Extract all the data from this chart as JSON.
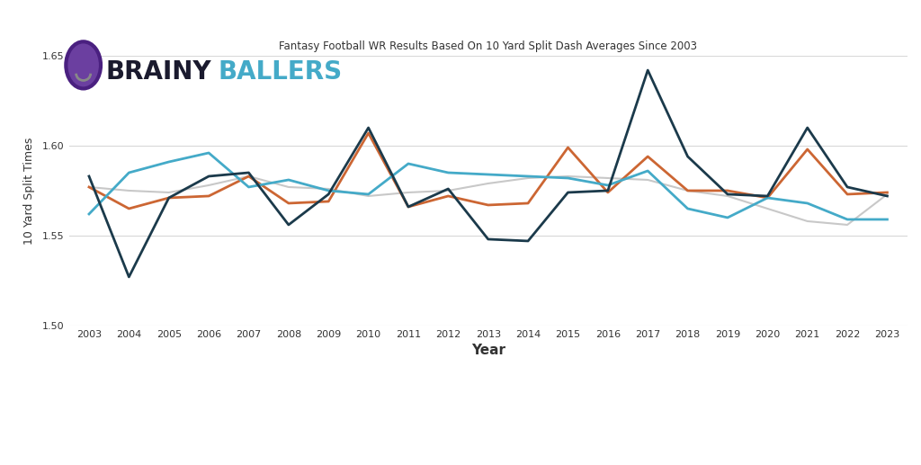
{
  "title": "Fantasy Football WR Results Based On 10 Yard Split Dash Averages Since 2003",
  "xlabel": "Year",
  "ylabel": "10 Yard Split Times",
  "years": [
    2003,
    2004,
    2005,
    2006,
    2007,
    2008,
    2009,
    2010,
    2011,
    2012,
    2013,
    2014,
    2015,
    2016,
    2017,
    2018,
    2019,
    2020,
    2021,
    2022,
    2023
  ],
  "top5": [
    1.583,
    1.527,
    1.571,
    1.583,
    1.585,
    1.556,
    1.573,
    1.61,
    1.566,
    1.576,
    1.548,
    1.547,
    1.574,
    1.575,
    1.642,
    1.594,
    1.573,
    1.572,
    1.61,
    1.577,
    1.572
  ],
  "top10": [
    1.577,
    1.565,
    1.571,
    1.572,
    1.583,
    1.568,
    1.569,
    1.607,
    1.566,
    1.572,
    1.567,
    1.568,
    1.599,
    1.574,
    1.594,
    1.575,
    1.575,
    1.571,
    1.598,
    1.573,
    1.574
  ],
  "top11_30": [
    1.577,
    1.575,
    1.574,
    1.578,
    1.583,
    1.577,
    1.576,
    1.572,
    1.574,
    1.575,
    1.579,
    1.582,
    1.583,
    1.582,
    1.581,
    1.575,
    1.572,
    1.565,
    1.558,
    1.556,
    1.573
  ],
  "top31_50": [
    1.562,
    1.585,
    1.591,
    1.596,
    1.577,
    1.581,
    1.575,
    1.573,
    1.59,
    1.585,
    1.584,
    1.583,
    1.582,
    1.578,
    1.586,
    1.565,
    1.56,
    1.571,
    1.568,
    1.559,
    1.559
  ],
  "colors": {
    "top5": "#1b3a4b",
    "top10": "#cc6633",
    "top11_30": "#c8c8c8",
    "top31_50": "#44aac8"
  },
  "ylim": [
    1.5,
    1.65
  ],
  "yticks": [
    1.5,
    1.55,
    1.6,
    1.65
  ],
  "bg_color": "#ffffff",
  "grid_color": "#d8d8d8",
  "brainy_color": "#1a1a2e",
  "ballers_color": "#44aac8",
  "logo_text_size": 20
}
